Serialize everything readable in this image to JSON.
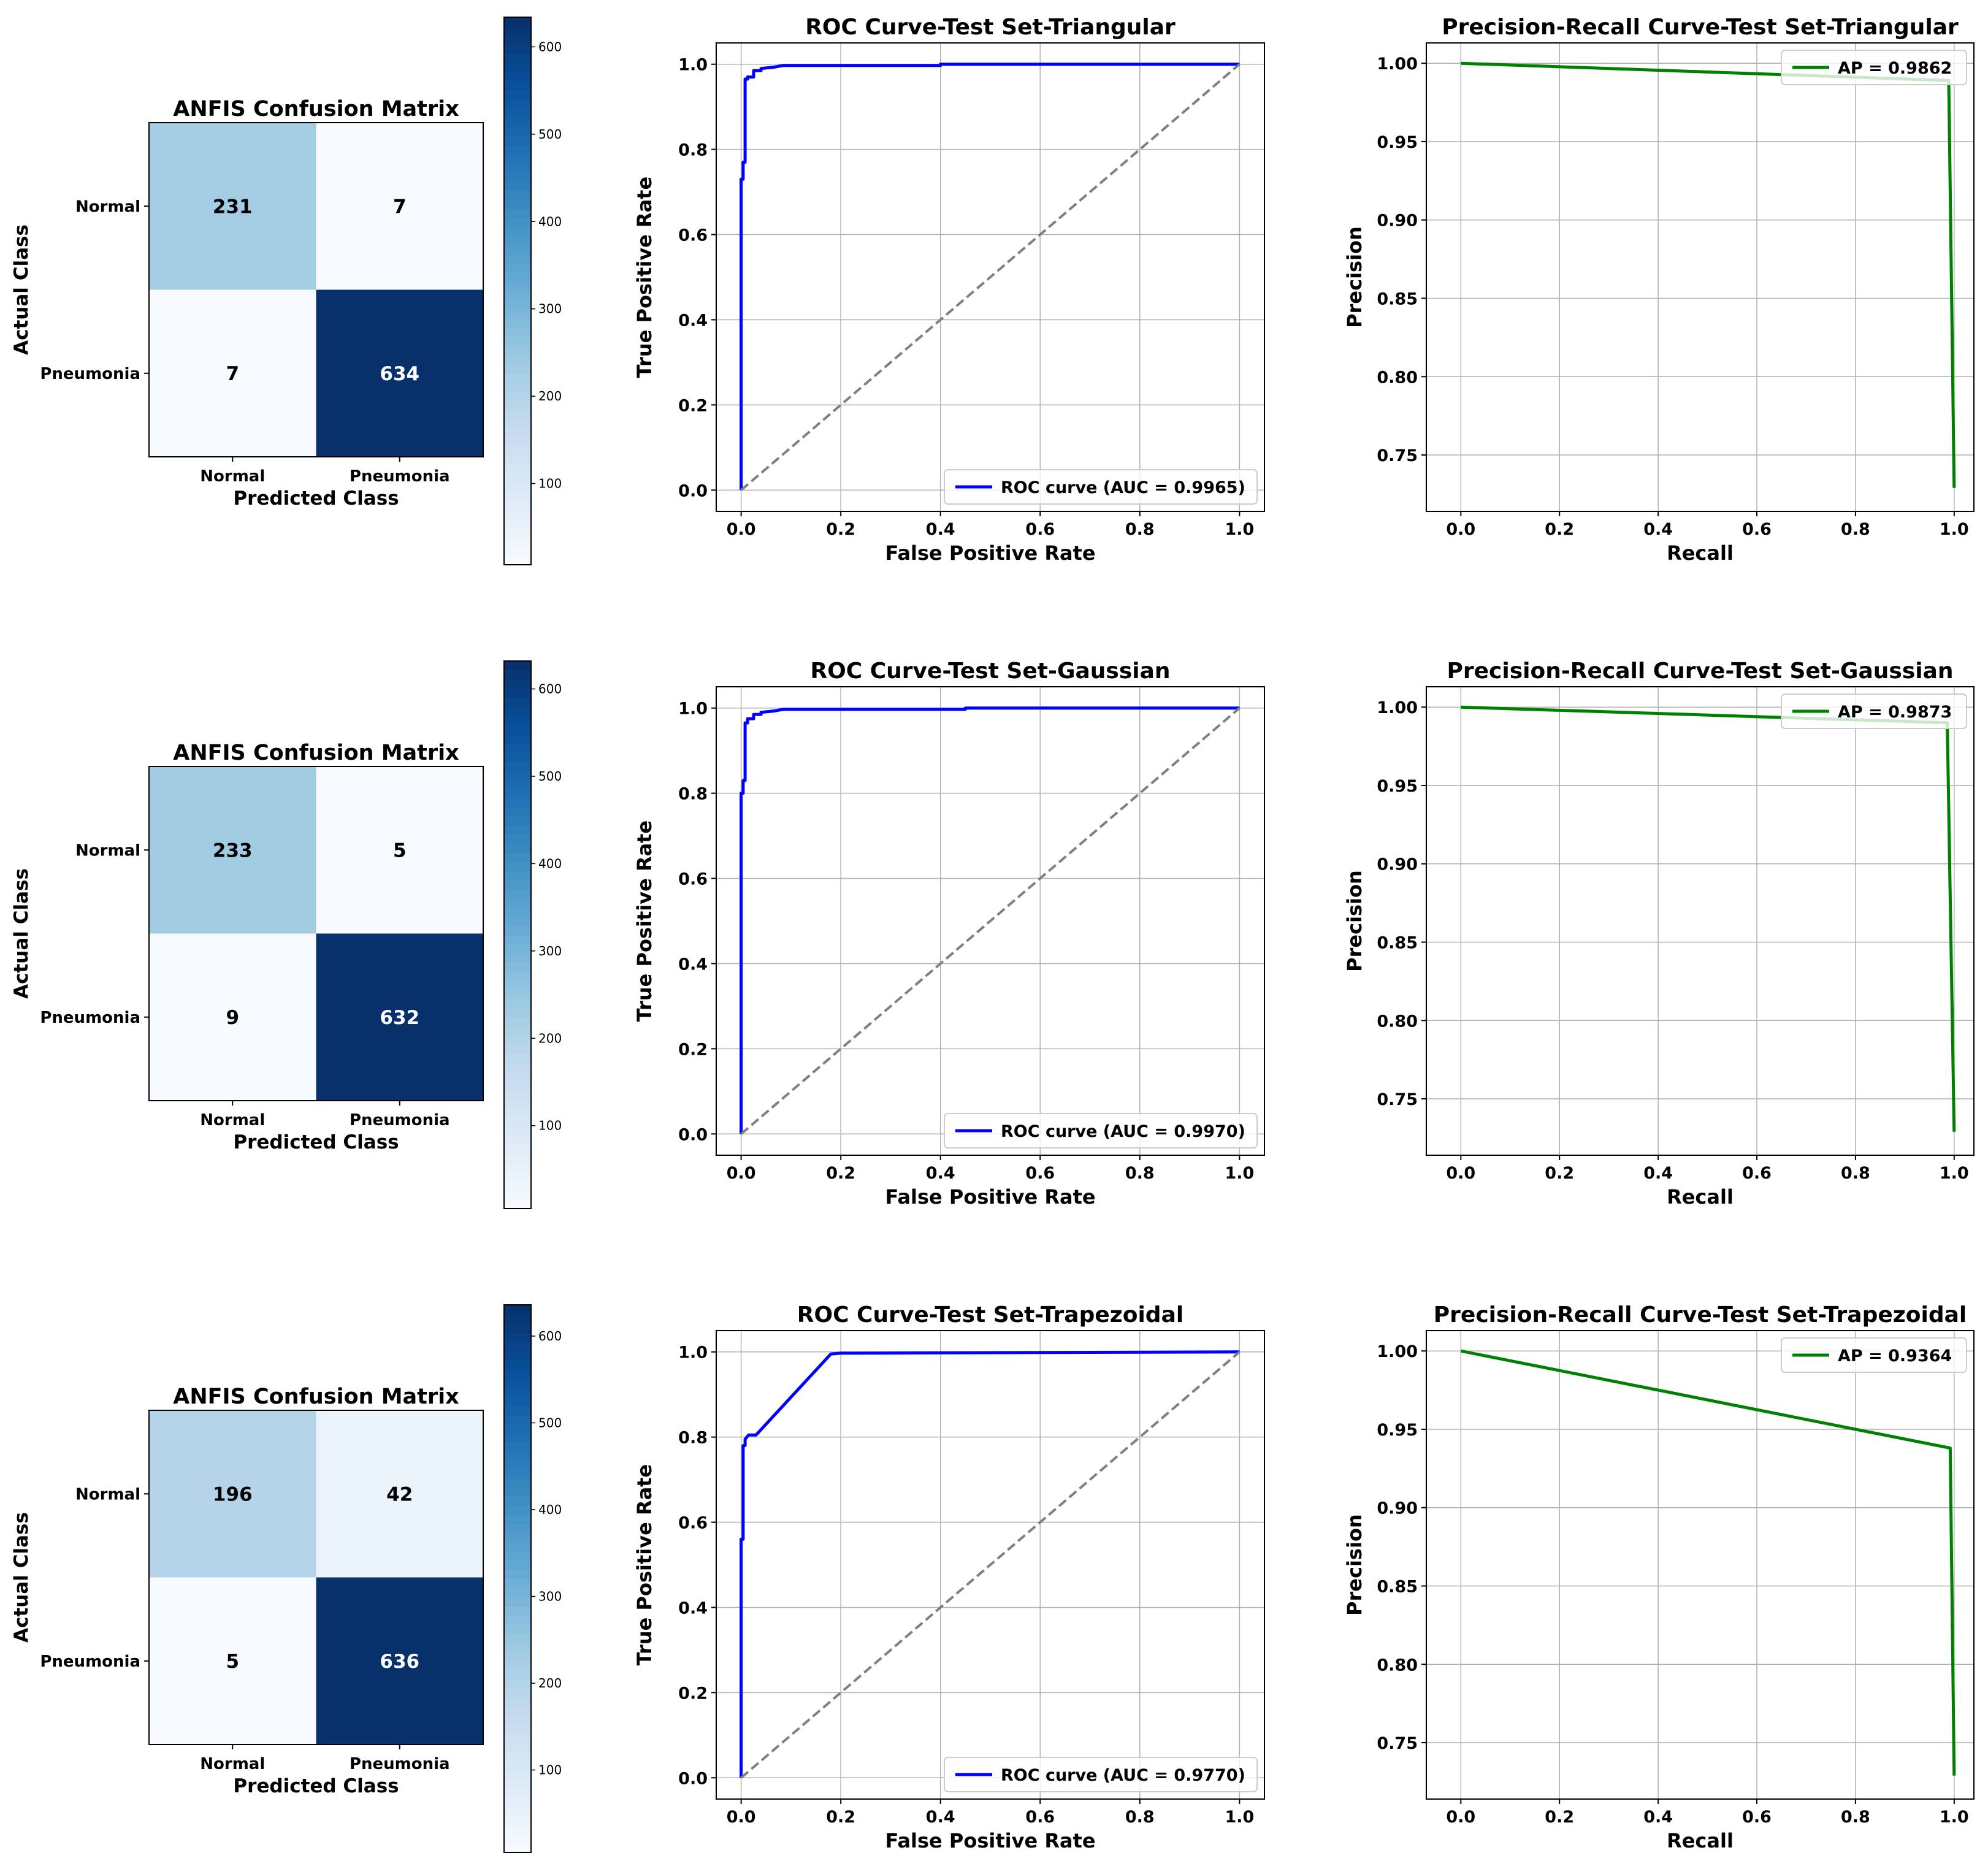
{
  "colors": {
    "roc_line": "#0000ff",
    "pr_line": "#008000",
    "diagonal": "#808080",
    "grid": "#b0b0b0",
    "cm_low": "#f7fbff",
    "cm_high": "#08306b"
  },
  "chart_data": [
    {
      "type": "heatmap",
      "panel": "cm_triangular",
      "title": "ANFIS Confusion Matrix",
      "xlabel": "Predicted Class",
      "ylabel": "Actual Class",
      "row_labels": [
        "Normal",
        "Pneumonia"
      ],
      "col_labels": [
        "Normal",
        "Pneumonia"
      ],
      "values": [
        [
          231,
          7
        ],
        [
          7,
          634
        ]
      ],
      "colorbar": {
        "min": 7,
        "max": 634,
        "ticks": [
          100,
          200,
          300,
          400,
          500,
          600
        ]
      }
    },
    {
      "type": "line",
      "panel": "roc_triangular",
      "title": "ROC Curve-Test Set-Triangular",
      "xlabel": "False Positive Rate",
      "ylabel": "True Positive Rate",
      "xlim": [
        -0.05,
        1.05
      ],
      "ylim": [
        -0.05,
        1.05
      ],
      "xticks": [
        0.0,
        0.2,
        0.4,
        0.6,
        0.8,
        1.0
      ],
      "yticks": [
        0.0,
        0.2,
        0.4,
        0.6,
        0.8,
        1.0
      ],
      "grid": true,
      "legend_position": "lower-right",
      "series": [
        {
          "name": "ROC curve (AUC = 0.9965)",
          "color": "#0000ff",
          "style": "solid",
          "x": [
            0,
            0,
            0.004,
            0.004,
            0.008,
            0.008,
            0.013,
            0.013,
            0.025,
            0.025,
            0.04,
            0.04,
            0.065,
            0.085,
            0.4,
            0.4,
            1.0
          ],
          "y": [
            0,
            0.73,
            0.73,
            0.77,
            0.77,
            0.965,
            0.965,
            0.97,
            0.97,
            0.985,
            0.985,
            0.99,
            0.993,
            0.997,
            0.997,
            1.0,
            1.0
          ]
        },
        {
          "color": "#808080",
          "style": "dashed",
          "x": [
            0,
            1
          ],
          "y": [
            0,
            1
          ]
        }
      ]
    },
    {
      "type": "line",
      "panel": "pr_triangular",
      "title": "Precision-Recall Curve-Test Set-Triangular",
      "xlabel": "Recall",
      "ylabel": "Precision",
      "xlim": [
        -0.07,
        1.04
      ],
      "ylim": [
        0.714,
        1.013
      ],
      "xticks": [
        0.0,
        0.2,
        0.4,
        0.6,
        0.8,
        1.0
      ],
      "yticks": [
        0.75,
        0.8,
        0.85,
        0.9,
        0.95,
        1.0
      ],
      "grid": true,
      "legend_position": "upper-right",
      "series": [
        {
          "name": "AP = 0.9862",
          "color": "#008000",
          "style": "solid",
          "x": [
            0.0,
            0.989,
            1.0
          ],
          "y": [
            1.0,
            0.989,
            0.729
          ]
        }
      ]
    },
    {
      "type": "heatmap",
      "panel": "cm_gaussian",
      "title": "ANFIS Confusion Matrix",
      "xlabel": "Predicted Class",
      "ylabel": "Actual Class",
      "row_labels": [
        "Normal",
        "Pneumonia"
      ],
      "col_labels": [
        "Normal",
        "Pneumonia"
      ],
      "values": [
        [
          233,
          5
        ],
        [
          9,
          632
        ]
      ],
      "colorbar": {
        "min": 5,
        "max": 632,
        "ticks": [
          100,
          200,
          300,
          400,
          500,
          600
        ]
      }
    },
    {
      "type": "line",
      "panel": "roc_gaussian",
      "title": "ROC Curve-Test Set-Gaussian",
      "xlabel": "False Positive Rate",
      "ylabel": "True Positive Rate",
      "xlim": [
        -0.05,
        1.05
      ],
      "ylim": [
        -0.05,
        1.05
      ],
      "xticks": [
        0.0,
        0.2,
        0.4,
        0.6,
        0.8,
        1.0
      ],
      "yticks": [
        0.0,
        0.2,
        0.4,
        0.6,
        0.8,
        1.0
      ],
      "grid": true,
      "legend_position": "lower-right",
      "series": [
        {
          "name": "ROC curve (AUC = 0.9970)",
          "color": "#0000ff",
          "style": "solid",
          "x": [
            0,
            0,
            0.004,
            0.004,
            0.008,
            0.008,
            0.013,
            0.013,
            0.025,
            0.025,
            0.04,
            0.04,
            0.065,
            0.085,
            0.45,
            0.45,
            1.0
          ],
          "y": [
            0,
            0.8,
            0.8,
            0.83,
            0.83,
            0.965,
            0.965,
            0.975,
            0.975,
            0.985,
            0.985,
            0.99,
            0.993,
            0.997,
            0.997,
            1.0,
            1.0
          ]
        },
        {
          "color": "#808080",
          "style": "dashed",
          "x": [
            0,
            1
          ],
          "y": [
            0,
            1
          ]
        }
      ]
    },
    {
      "type": "line",
      "panel": "pr_gaussian",
      "title": "Precision-Recall Curve-Test Set-Gaussian",
      "xlabel": "Recall",
      "ylabel": "Precision",
      "xlim": [
        -0.07,
        1.04
      ],
      "ylim": [
        0.714,
        1.013
      ],
      "xticks": [
        0.0,
        0.2,
        0.4,
        0.6,
        0.8,
        1.0
      ],
      "yticks": [
        0.75,
        0.8,
        0.85,
        0.9,
        0.95,
        1.0
      ],
      "grid": true,
      "legend_position": "upper-right",
      "series": [
        {
          "name": "AP = 0.9873",
          "color": "#008000",
          "style": "solid",
          "x": [
            0.0,
            0.986,
            1.0
          ],
          "y": [
            1.0,
            0.99,
            0.729
          ]
        }
      ]
    },
    {
      "type": "heatmap",
      "panel": "cm_trapezoidal",
      "title": "ANFIS Confusion Matrix",
      "xlabel": "Predicted Class",
      "ylabel": "Actual Class",
      "row_labels": [
        "Normal",
        "Pneumonia"
      ],
      "col_labels": [
        "Normal",
        "Pneumonia"
      ],
      "values": [
        [
          196,
          42
        ],
        [
          5,
          636
        ]
      ],
      "colorbar": {
        "min": 5,
        "max": 636,
        "ticks": [
          100,
          200,
          300,
          400,
          500,
          600
        ]
      }
    },
    {
      "type": "line",
      "panel": "roc_trapezoidal",
      "title": "ROC Curve-Test Set-Trapezoidal",
      "xlabel": "False Positive Rate",
      "ylabel": "True Positive Rate",
      "xlim": [
        -0.05,
        1.05
      ],
      "ylim": [
        -0.05,
        1.05
      ],
      "xticks": [
        0.0,
        0.2,
        0.4,
        0.6,
        0.8,
        1.0
      ],
      "yticks": [
        0.0,
        0.2,
        0.4,
        0.6,
        0.8,
        1.0
      ],
      "grid": true,
      "legend_position": "lower-right",
      "series": [
        {
          "name": "ROC curve (AUC = 0.9770)",
          "color": "#0000ff",
          "style": "solid",
          "x": [
            0,
            0,
            0.004,
            0.004,
            0.008,
            0.008,
            0.015,
            0.03,
            0.18,
            0.2,
            1.0
          ],
          "y": [
            0,
            0.56,
            0.56,
            0.78,
            0.78,
            0.795,
            0.805,
            0.805,
            0.995,
            0.997,
            1.0
          ]
        },
        {
          "color": "#808080",
          "style": "dashed",
          "x": [
            0,
            1
          ],
          "y": [
            0,
            1
          ]
        }
      ]
    },
    {
      "type": "line",
      "panel": "pr_trapezoidal",
      "title": "Precision-Recall Curve-Test Set-Trapezoidal",
      "xlabel": "Recall",
      "ylabel": "Precision",
      "xlim": [
        -0.07,
        1.04
      ],
      "ylim": [
        0.714,
        1.013
      ],
      "xticks": [
        0.0,
        0.2,
        0.4,
        0.6,
        0.8,
        1.0
      ],
      "yticks": [
        0.75,
        0.8,
        0.85,
        0.9,
        0.95,
        1.0
      ],
      "grid": true,
      "legend_position": "upper-right",
      "series": [
        {
          "name": "AP = 0.9364",
          "color": "#008000",
          "style": "solid",
          "x": [
            0.0,
            0.992,
            1.0
          ],
          "y": [
            1.0,
            0.938,
            0.729
          ]
        }
      ]
    }
  ]
}
